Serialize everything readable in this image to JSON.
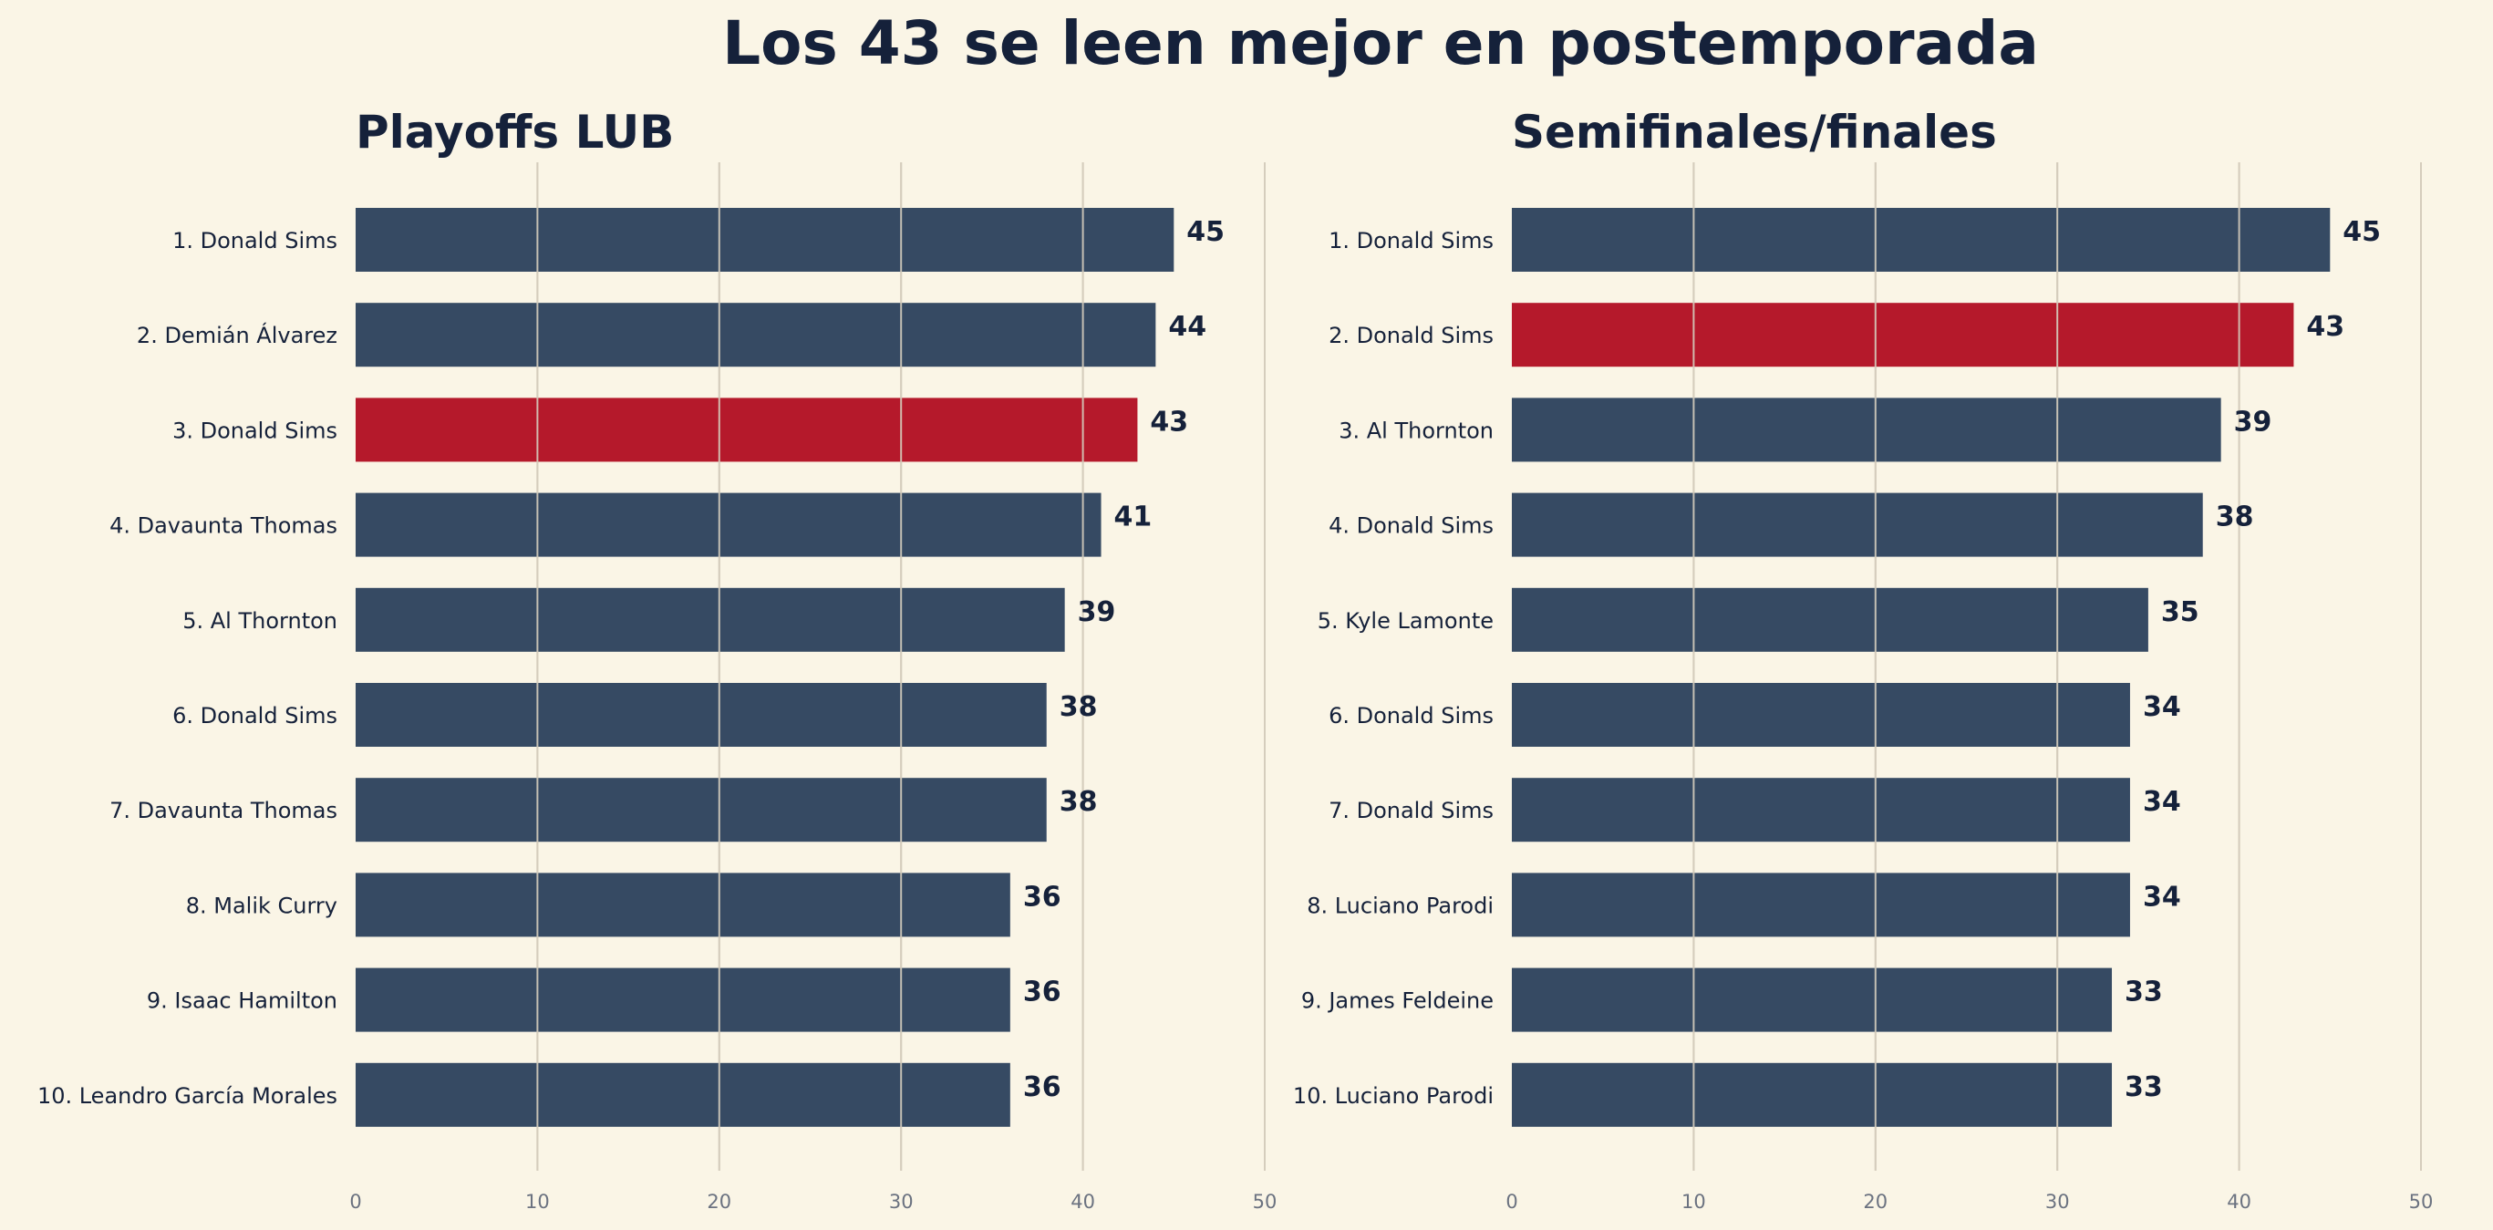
{
  "title": "Los 43 se leen mejor en postemporada",
  "colors": {
    "background": "#faf5e6",
    "bar": "#364a63",
    "highlight": "#b5192b",
    "grid": "#d5cdbd",
    "text": "#15213a",
    "tick": "#6b7280"
  },
  "chart_data": [
    {
      "type": "bar",
      "orientation": "horizontal",
      "title": "Playoffs LUB",
      "xlim": [
        0,
        50
      ],
      "xticks": [
        0,
        10,
        20,
        30,
        40,
        50
      ],
      "grid": true,
      "categories": [
        "1. Donald Sims",
        "2. Demián Álvarez",
        "3. Donald Sims",
        "4. Davaunta Thomas",
        "5. Al Thornton",
        "6. Donald Sims",
        "7. Davaunta Thomas",
        "8. Malik Curry",
        "9. Isaac Hamilton",
        "10. Leandro García Morales"
      ],
      "values": [
        45,
        44,
        43,
        41,
        39,
        38,
        38,
        36,
        36,
        36
      ],
      "highlight_index": 2
    },
    {
      "type": "bar",
      "orientation": "horizontal",
      "title": "Semifinales/finales",
      "xlim": [
        0,
        50
      ],
      "xticks": [
        0,
        10,
        20,
        30,
        40,
        50
      ],
      "grid": true,
      "categories": [
        "1. Donald Sims",
        "2. Donald Sims",
        "3. Al Thornton",
        "4. Donald Sims",
        "5. Kyle Lamonte",
        "6. Donald Sims",
        "7. Donald Sims",
        "8. Luciano Parodi",
        "9. James Feldeine",
        "10. Luciano Parodi"
      ],
      "values": [
        45,
        43,
        39,
        38,
        35,
        34,
        34,
        34,
        33,
        33
      ],
      "highlight_index": 1
    }
  ]
}
